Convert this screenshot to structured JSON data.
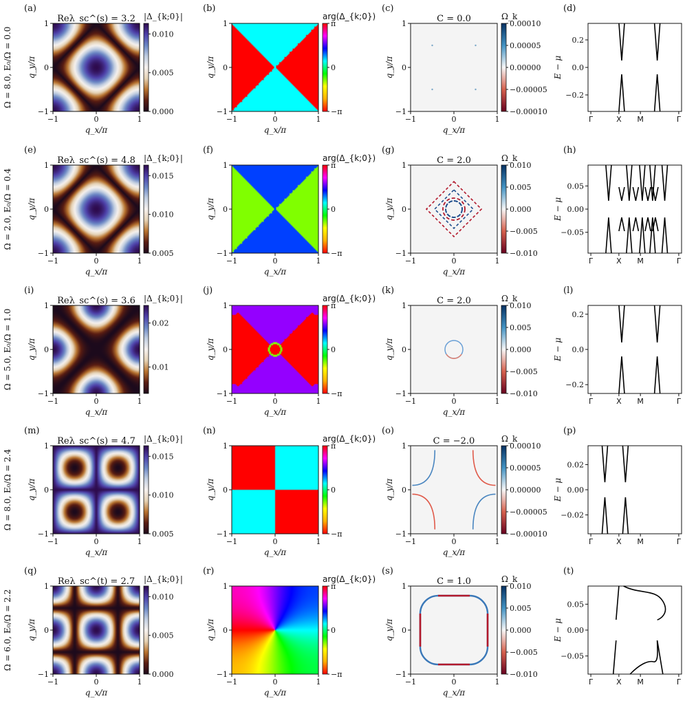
{
  "colors": {
    "text": "#111111",
    "twilight_stops": [
      "#1c0a1c",
      "#5a1d12",
      "#b8732f",
      "#e5d2b5",
      "#f6f1ee",
      "#c0cde0",
      "#6a86c4",
      "#4d3fa8",
      "#2e0b4d"
    ],
    "rdbu_stops": [
      "#67001f",
      "#d6604d",
      "#f7f7f7",
      "#4393c3",
      "#053061"
    ],
    "hsv_stops": [
      "#ff0000",
      "#ffb000",
      "#ffff00",
      "#00ff00",
      "#00ffff",
      "#0000ff",
      "#ff00ff",
      "#ff0000"
    ]
  },
  "common": {
    "qx_label": "q_x/π",
    "qy_label": "q_y/π",
    "e_label": "E − μ",
    "mag_cbar_label": "|Δ_{k;0}|",
    "arg_cbar_label": "arg(Δ_{k;0})",
    "omega_cbar_label": "Ω_k",
    "map_ticks": [
      "−1",
      "0",
      "1"
    ],
    "arg_ticks": [
      "π",
      "0",
      "−π"
    ],
    "band_path_labels": [
      "Γ",
      "X",
      "M",
      "Γ"
    ]
  },
  "chart_data": [
    {
      "row": 0,
      "row_label": "Ω = 8.0, E₀/Ω = 0.0",
      "panels": [
        {
          "type": "heatmap",
          "letter": "(a)",
          "title": "Reλ_sc^(s) = 3.2",
          "cbar_ticks": [
            "0.010",
            "0.005",
            "0.000"
          ],
          "pattern": "s_wave_cos_sum"
        },
        {
          "type": "heatmap",
          "letter": "(b)",
          "title": "",
          "phase_values": [
            "π",
            "0"
          ],
          "pattern": "diagonal_sectors"
        },
        {
          "type": "heatmap",
          "letter": "(c)",
          "title": "C = 0.0",
          "cbar_ticks": [
            "0.00010",
            "0.00005",
            "0.00000",
            "−0.00005",
            "−0.00010"
          ]
        },
        {
          "type": "line",
          "letter": "(d)",
          "ytick_labels": [
            "0.2",
            "0.0",
            "−0.2"
          ],
          "ylim": [
            -0.32,
            0.32
          ],
          "gap": 0.05
        }
      ]
    },
    {
      "row": 1,
      "row_label": "Ω = 2.0, E₀/Ω = 0.4",
      "panels": [
        {
          "type": "heatmap",
          "letter": "(e)",
          "title": "Reλ_sc^(s) = 4.8",
          "cbar_ticks": [
            "0.015",
            "0.010",
            "0.005"
          ],
          "pattern": "s_wave_cos_sum"
        },
        {
          "type": "heatmap",
          "letter": "(f)",
          "title": "",
          "phase_values": [
            "−π/2",
            "π/4"
          ],
          "pattern": "diagonal_sectors"
        },
        {
          "type": "heatmap",
          "letter": "(g)",
          "title": "C = 2.0",
          "cbar_ticks": [
            "0.010",
            "0.005",
            "0.000",
            "−0.005",
            "−0.010"
          ]
        },
        {
          "type": "line",
          "letter": "(h)",
          "ytick_labels": [
            "0.05",
            "0.00",
            "−0.05"
          ],
          "ylim": [
            -0.095,
            0.095
          ],
          "gap": 0.018
        }
      ]
    },
    {
      "row": 2,
      "row_label": "Ω = 5.0, E₀/Ω = 1.0",
      "panels": [
        {
          "type": "heatmap",
          "letter": "(i)",
          "title": "Reλ_sc^(s) = 3.6",
          "cbar_ticks": [
            "0.02",
            "0.01"
          ],
          "pattern": "pockets_at_edges"
        },
        {
          "type": "heatmap",
          "letter": "(j)",
          "title": "",
          "phase_values": [
            "π",
            "π/1.9"
          ],
          "pattern": "diagonal_sectors_with_circle"
        },
        {
          "type": "heatmap",
          "letter": "(k)",
          "title": "C = 2.0",
          "cbar_ticks": [
            "0.010",
            "0.005",
            "0.000",
            "−0.005",
            "−0.010"
          ]
        },
        {
          "type": "line",
          "letter": "(l)",
          "ytick_labels": [
            "0.2",
            "0.0",
            "−0.2"
          ],
          "ylim": [
            -0.25,
            0.25
          ],
          "gap": 0.04
        }
      ]
    },
    {
      "row": 3,
      "row_label": "Ω = 8.0, E₀/Ω = 2.4",
      "panels": [
        {
          "type": "heatmap",
          "letter": "(m)",
          "title": "Reλ_sc^(s) = 4.7",
          "cbar_ticks": [
            "0.015",
            "0.010",
            "0.005"
          ],
          "pattern": "four_quadrant_pockets"
        },
        {
          "type": "heatmap",
          "letter": "(n)",
          "title": "",
          "phase_values": [
            "0",
            "π"
          ],
          "pattern": "quadrants"
        },
        {
          "type": "heatmap",
          "letter": "(o)",
          "title": "C = −2.0",
          "cbar_ticks": [
            "0.00010",
            "0.00005",
            "0.00000",
            "−0.00005",
            "−0.00010"
          ]
        },
        {
          "type": "line",
          "letter": "(p)",
          "ytick_labels": [
            "0.02",
            "0.00",
            "−0.02"
          ],
          "ylim": [
            -0.035,
            0.035
          ],
          "gap": 0.006
        }
      ]
    },
    {
      "row": 4,
      "row_label": "Ω = 6.0, E₀/Ω = 2.2",
      "panels": [
        {
          "type": "heatmap",
          "letter": "(q)",
          "title": "Reλ_sc^(t) = 2.7",
          "cbar_ticks": [
            "0.010",
            "0.005",
            "0.000"
          ],
          "pattern": "t_wave"
        },
        {
          "type": "heatmap",
          "letter": "(r)",
          "title": "",
          "pattern": "vortex_hsv"
        },
        {
          "type": "heatmap",
          "letter": "(s)",
          "title": "C = 1.0",
          "cbar_ticks": [
            "0.010",
            "0.005",
            "0.000",
            "−0.005",
            "−0.010"
          ]
        },
        {
          "type": "line",
          "letter": "(t)",
          "ytick_labels": [
            "0.05",
            "0.00",
            "−0.05"
          ],
          "ylim": [
            -0.085,
            0.085
          ],
          "gap": 0.02
        }
      ]
    }
  ]
}
